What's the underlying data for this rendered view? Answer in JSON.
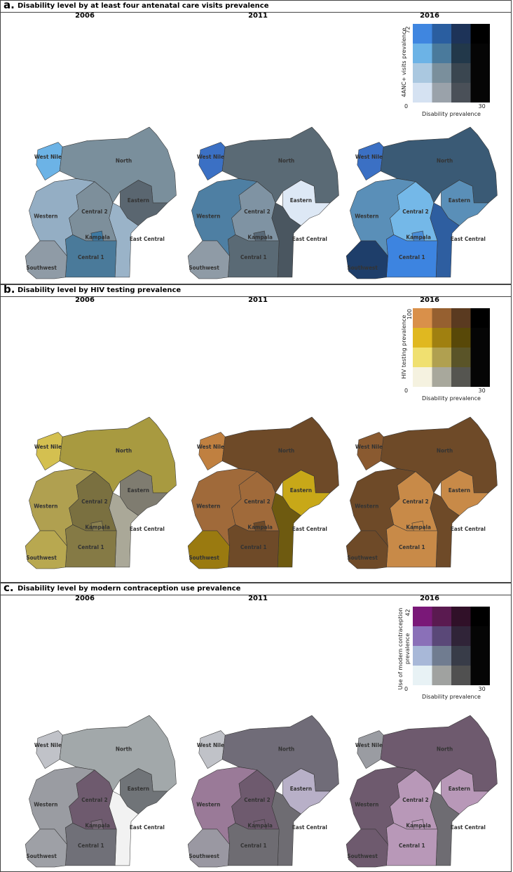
{
  "regions": [
    "West Nile",
    "North",
    "Eastern",
    "Western",
    "Central 2",
    "Kampala",
    "East Central",
    "Central 1",
    "Southwest"
  ],
  "panels": [
    {
      "label": "a.",
      "title": "Disability level by at least four antenatal care visits prevalence",
      "years": [
        "2006",
        "2011",
        "2016"
      ],
      "maps": [
        {
          "colors": [
            "#6cb3e6",
            "#7a8f9c",
            "#5a6670",
            "#94aec4",
            "#7d8f9b",
            "#3f7aa3",
            "#9ab3c8",
            "#4a7a9a",
            "#8f9ba6"
          ]
        },
        {
          "colors": [
            "#3b70c4",
            "#5a6a75",
            "#dde8f5",
            "#4e7fa3",
            "#7f93a3",
            "#5a6a78",
            "#4a5660",
            "#5a6a75",
            "#8f9ba6"
          ]
        },
        {
          "colors": [
            "#3b70c4",
            "#3a5a75",
            "#5a8fb8",
            "#5a8fb8",
            "#74b8e8",
            "#4a8ed8",
            "#2e5ea0",
            "#3d84e0",
            "#1e3e6a"
          ]
        }
      ],
      "legend": {
        "y_label": "4ANC+ visits prevalence",
        "x_label": "Disability prevalence",
        "y_max": 72,
        "origin": 0,
        "x_max": 30,
        "colors": [
          [
            "#3f86e0",
            "#2a5ea0",
            "#1d3358",
            "#000000"
          ],
          [
            "#6cb3e6",
            "#4a7a9c",
            "#22384a",
            "#050505"
          ],
          [
            "#aac8e0",
            "#7a8f9c",
            "#3a4650",
            "#050505"
          ],
          [
            "#d5e2f2",
            "#9aa2aa",
            "#4a5058",
            "#050505"
          ]
        ]
      }
    },
    {
      "label": "b.",
      "title": "Disability level by HIV testing prevalence",
      "years": [
        "2006",
        "2011",
        "2016"
      ],
      "maps": [
        {
          "colors": [
            "#d4c050",
            "#a89a40",
            "#7f7c70",
            "#b0a050",
            "#7a7040",
            "#8a8050",
            "#aaa898",
            "#857a45",
            "#b8a850"
          ]
        },
        {
          "colors": [
            "#c08040",
            "#6e4a28",
            "#c8a818",
            "#a06a3a",
            "#a06a3a",
            "#6e4a28",
            "#6e5a10",
            "#6e4a28",
            "#9a7a10"
          ]
        },
        {
          "colors": [
            "#8a5a30",
            "#6e4a28",
            "#c88a48",
            "#6e4a28",
            "#c88a48",
            "#c88a48",
            "#6e4a28",
            "#c88a48",
            "#6e4a28"
          ]
        }
      ],
      "legend": {
        "y_label": "HIV testing prevalence",
        "x_label": "Disability prevalence",
        "y_max": 100,
        "origin": 0,
        "x_max": 30,
        "colors": [
          [
            "#d9904a",
            "#966030",
            "#5a3a20",
            "#000000"
          ],
          [
            "#e0b820",
            "#a08010",
            "#584808",
            "#050505"
          ],
          [
            "#f0e070",
            "#b0a050",
            "#5a5428",
            "#050505"
          ],
          [
            "#f5f2e0",
            "#a8a89c",
            "#555550",
            "#050505"
          ]
        ]
      }
    },
    {
      "label": "c.",
      "title": "Disability level by modern contraception use prevalence",
      "years": [
        "2006",
        "2011",
        "2016"
      ],
      "maps": [
        {
          "colors": [
            "#c0c2c8",
            "#a2a8aa",
            "#707478",
            "#9a9ca2",
            "#6e5a6e",
            "#7a6a7a",
            "#f2f2f2",
            "#707078",
            "#9ea0a6"
          ]
        },
        {
          "colors": [
            "#c0c2c8",
            "#706c78",
            "#b8b0c8",
            "#9a7a98",
            "#6e5a6e",
            "#6e5a6e",
            "#6e6c72",
            "#6e6c72",
            "#9a98a2"
          ]
        },
        {
          "colors": [
            "#9a9ca2",
            "#6e5a6e",
            "#b898b8",
            "#6e5a6e",
            "#b898b8",
            "#b898b8",
            "#6e6c72",
            "#b898b8",
            "#6e5a6e"
          ]
        }
      ],
      "legend": {
        "y_label": "Use of modern contraception prevalence",
        "x_label": "Disability prevalence",
        "y_max": 42,
        "origin": 0,
        "x_max": 30,
        "colors": [
          [
            "#7a1878",
            "#5a1a50",
            "#301028",
            "#000000"
          ],
          [
            "#8a70b8",
            "#5a4878",
            "#302438",
            "#050505"
          ],
          [
            "#a8b8d8",
            "#707c90",
            "#383c48",
            "#050505"
          ],
          [
            "#e8f2f5",
            "#a0a2a0",
            "#505050",
            "#050505"
          ]
        ]
      }
    }
  ]
}
